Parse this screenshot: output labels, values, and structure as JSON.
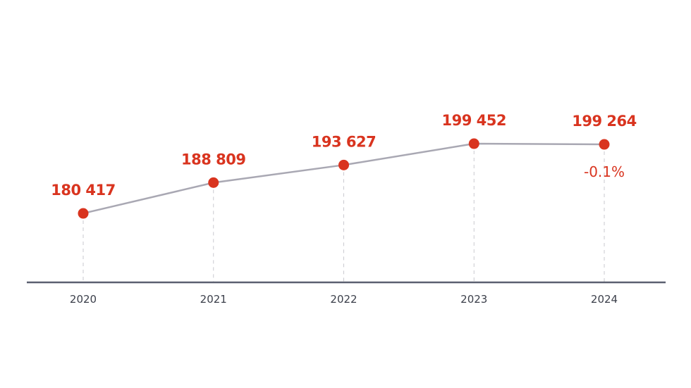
{
  "chart_data": {
    "type": "line",
    "title": "",
    "xlabel": "",
    "ylabel": "",
    "categories": [
      "2020",
      "2021",
      "2022",
      "2023",
      "2024"
    ],
    "values": [
      180417,
      188809,
      193627,
      199452,
      199264
    ],
    "value_labels": [
      "180 417",
      "188 809",
      "193 627",
      "199 452",
      "199 264"
    ],
    "annotations": [
      {
        "category": "2024",
        "text": "-0.1%"
      }
    ],
    "grid": false,
    "colors": {
      "line": "#a9a8b3",
      "point": "#d9341f",
      "label": "#d9341f",
      "axis": "#5b6070"
    }
  }
}
